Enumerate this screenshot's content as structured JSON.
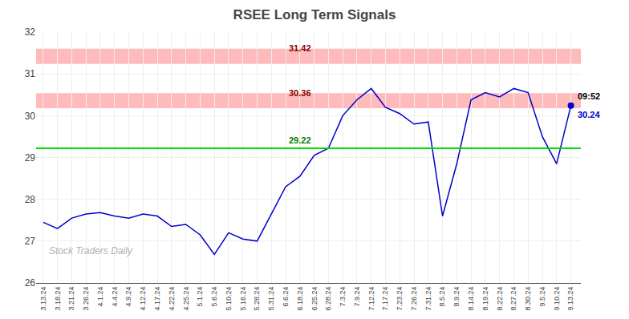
{
  "chart_data": {
    "type": "line",
    "title": "RSEE Long Term Signals",
    "categories": [
      "3.13.24",
      "3.18.24",
      "3.21.24",
      "3.26.24",
      "4.1.24",
      "4.4.24",
      "4.9.24",
      "4.12.24",
      "4.17.24",
      "4.22.24",
      "4.25.24",
      "5.1.24",
      "5.6.24",
      "5.10.24",
      "5.16.24",
      "5.28.24",
      "5.31.24",
      "6.6.24",
      "6.18.24",
      "6.25.24",
      "6.28.24",
      "7.3.24",
      "7.9.24",
      "7.12.24",
      "7.17.24",
      "7.23.24",
      "7.26.24",
      "7.31.24",
      "8.5.24",
      "8.9.24",
      "8.14.24",
      "8.19.24",
      "8.22.24",
      "8.27.24",
      "8.30.24",
      "9.5.24",
      "9.10.24",
      "9.13.24"
    ],
    "values": [
      27.45,
      27.3,
      27.55,
      27.65,
      27.68,
      27.6,
      27.55,
      27.65,
      27.6,
      27.35,
      27.4,
      27.15,
      26.68,
      27.2,
      27.05,
      27.0,
      27.65,
      28.3,
      28.55,
      29.05,
      29.22,
      30.0,
      30.38,
      30.65,
      30.2,
      30.05,
      29.8,
      29.85,
      27.6,
      28.85,
      30.38,
      30.55,
      30.45,
      30.65,
      30.55,
      29.5,
      28.85,
      30.24
    ],
    "color": "#0000cc",
    "ylim": [
      26,
      32
    ],
    "yticks": [
      26,
      27,
      28,
      29,
      30,
      31,
      32
    ],
    "grid": true,
    "bands": [
      {
        "from": 31.24,
        "to": 31.6,
        "color": "#ffbbbb"
      },
      {
        "from": 30.18,
        "to": 30.54,
        "color": "#ffbbbb"
      }
    ],
    "hlines": [
      {
        "value": 29.22,
        "color": "#00dd00"
      }
    ],
    "annotations": [
      {
        "text": "31.42",
        "x": "6.18.24",
        "y": 31.42,
        "color": "darkred"
      },
      {
        "text": "30.36",
        "x": "6.18.24",
        "y": 30.36,
        "color": "darkred"
      },
      {
        "text": "29.22",
        "x": "6.18.24",
        "y": 29.22,
        "color": "green"
      },
      {
        "text": "09:52",
        "x": "9.13.24",
        "y": 30.24,
        "color": "black"
      },
      {
        "text": "30.24",
        "x": "9.13.24",
        "y": 30.24,
        "color": "#0000cc",
        "marker": "circle"
      },
      {
        "text": "Stock Traders Daily",
        "color": "#b0b0b0"
      }
    ]
  }
}
